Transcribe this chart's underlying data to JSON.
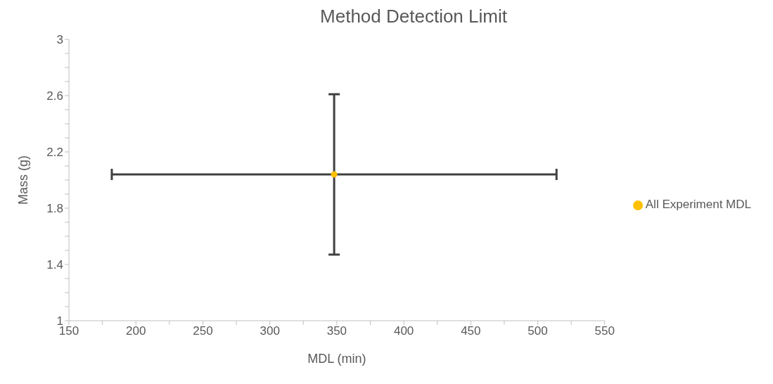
{
  "chart_data": {
    "type": "scatter",
    "title": "Method Detection Limit",
    "xlabel": "MDL (min)",
    "ylabel": "Mass (g)",
    "x": [
      348
    ],
    "series": [
      {
        "name": "All Experiment MDL",
        "color": "#ffc000",
        "values": [
          2.04
        ],
        "errors": [
          [
            1.47,
            2.61
          ]
        ],
        "xerrors": [
          [
            182,
            514
          ]
        ]
      }
    ],
    "xlim": [
      150,
      550
    ],
    "xticks": [
      150,
      {
        "value": 175,
        "label": null
      },
      200,
      {
        "value": 225,
        "label": null
      },
      250,
      {
        "value": 275,
        "label": null
      },
      300,
      {
        "value": 325,
        "label": null
      },
      350,
      {
        "value": 375,
        "label": null
      },
      400,
      {
        "value": 425,
        "label": null
      },
      450,
      {
        "value": 475,
        "label": null
      },
      500,
      {
        "value": 525,
        "label": null
      },
      550
    ],
    "ylim": [
      1,
      3
    ],
    "yticks": [
      1,
      {
        "value": 1.1,
        "label": null
      },
      {
        "value": 1.2,
        "label": null
      },
      {
        "value": 1.3,
        "label": null
      },
      1.4,
      {
        "value": 1.5,
        "label": null
      },
      {
        "value": 1.6,
        "label": null
      },
      {
        "value": 1.7,
        "label": null
      },
      1.8,
      {
        "value": 1.9,
        "label": null
      },
      {
        "value": 2.0,
        "label": null
      },
      {
        "value": 2.1,
        "label": null
      },
      2.2,
      {
        "value": 2.3,
        "label": null
      },
      {
        "value": 2.4,
        "label": null
      },
      {
        "value": 2.5,
        "label": null
      },
      2.6,
      {
        "value": 2.7,
        "label": null
      },
      {
        "value": 2.8,
        "label": null
      },
      {
        "value": 2.9,
        "label": null
      },
      3
    ],
    "grid": false,
    "legend": "right",
    "marker": "circle"
  }
}
